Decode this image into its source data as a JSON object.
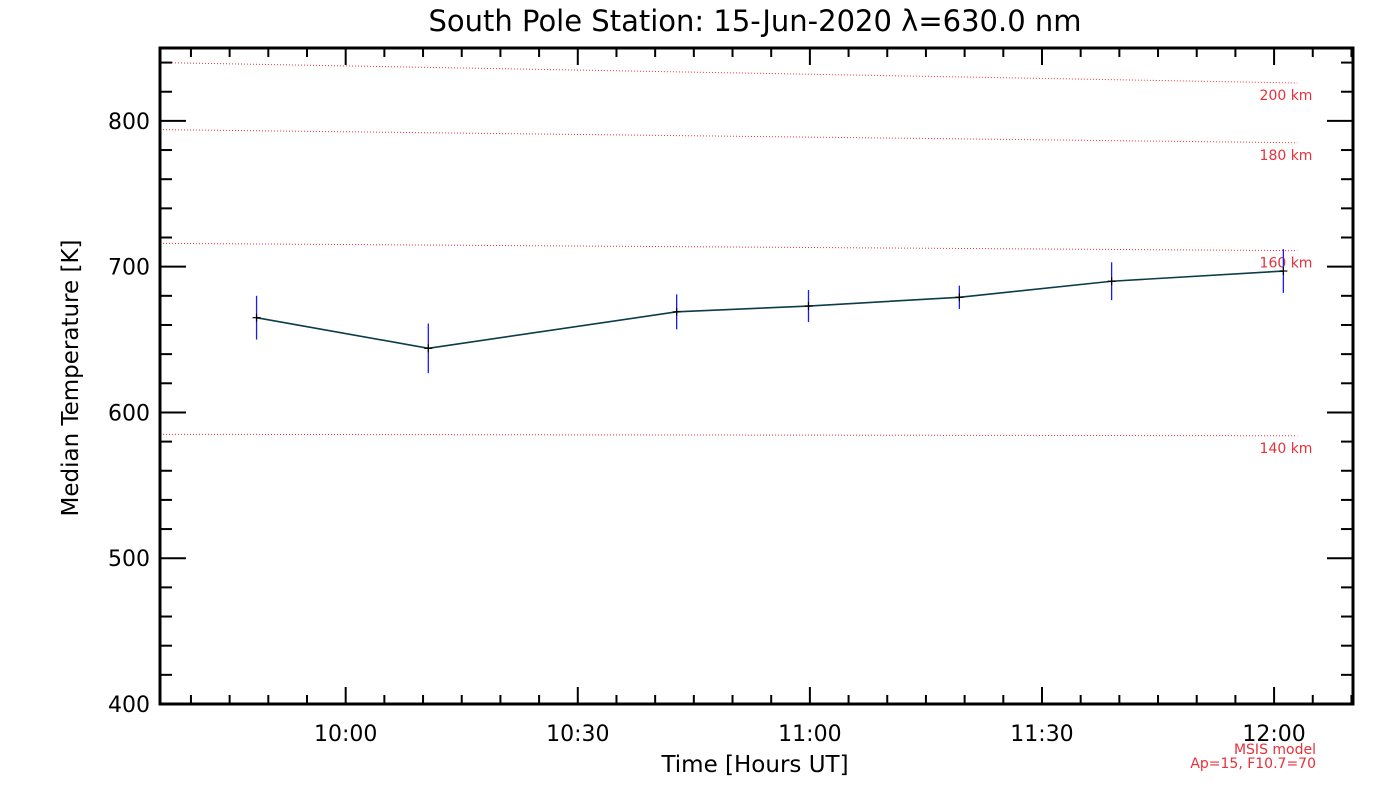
{
  "chart_data": {
    "type": "line",
    "title": "South Pole Station: 15-Jun-2020 λ=630.0 nm",
    "xlabel": "Time [Hours UT]",
    "ylabel": "Median Temperature [K]",
    "xlim": [
      9.6,
      12.17
    ],
    "ylim": [
      400,
      850
    ],
    "x_ticks": [
      {
        "value": 10.0,
        "label": "10:00"
      },
      {
        "value": 10.5,
        "label": "10:30"
      },
      {
        "value": 11.0,
        "label": "11:00"
      },
      {
        "value": 11.5,
        "label": "11:30"
      },
      {
        "value": 12.0,
        "label": "12:00"
      }
    ],
    "y_ticks": [
      {
        "value": 400,
        "label": "400"
      },
      {
        "value": 500,
        "label": "500"
      },
      {
        "value": 600,
        "label": "600"
      },
      {
        "value": 700,
        "label": "700"
      },
      {
        "value": 800,
        "label": "800"
      }
    ],
    "series": [
      {
        "name": "Median Temperature",
        "color": "#0b3c4a",
        "error_color": "#1a1aff",
        "x": [
          9.808,
          10.178,
          10.713,
          10.997,
          11.322,
          11.65,
          12.02
        ],
        "values": [
          665,
          644,
          669,
          673,
          679,
          690,
          697
        ],
        "err": [
          15,
          17,
          12,
          11,
          8,
          13,
          15
        ]
      }
    ],
    "reference_lines": [
      {
        "label": "200 km",
        "x": [
          9.6,
          12.05
        ],
        "values": [
          840,
          826
        ]
      },
      {
        "label": "180 km",
        "x": [
          9.6,
          12.05
        ],
        "values": [
          794,
          785
        ]
      },
      {
        "label": "160 km",
        "x": [
          9.6,
          12.05
        ],
        "values": [
          716,
          711
        ]
      },
      {
        "label": "140 km",
        "x": [
          9.6,
          12.05
        ],
        "values": [
          585,
          584
        ]
      }
    ],
    "reference_color": "#e8303a",
    "annotation": {
      "line1": "MSIS model",
      "line2": "Ap=15, F10.7=70"
    }
  }
}
